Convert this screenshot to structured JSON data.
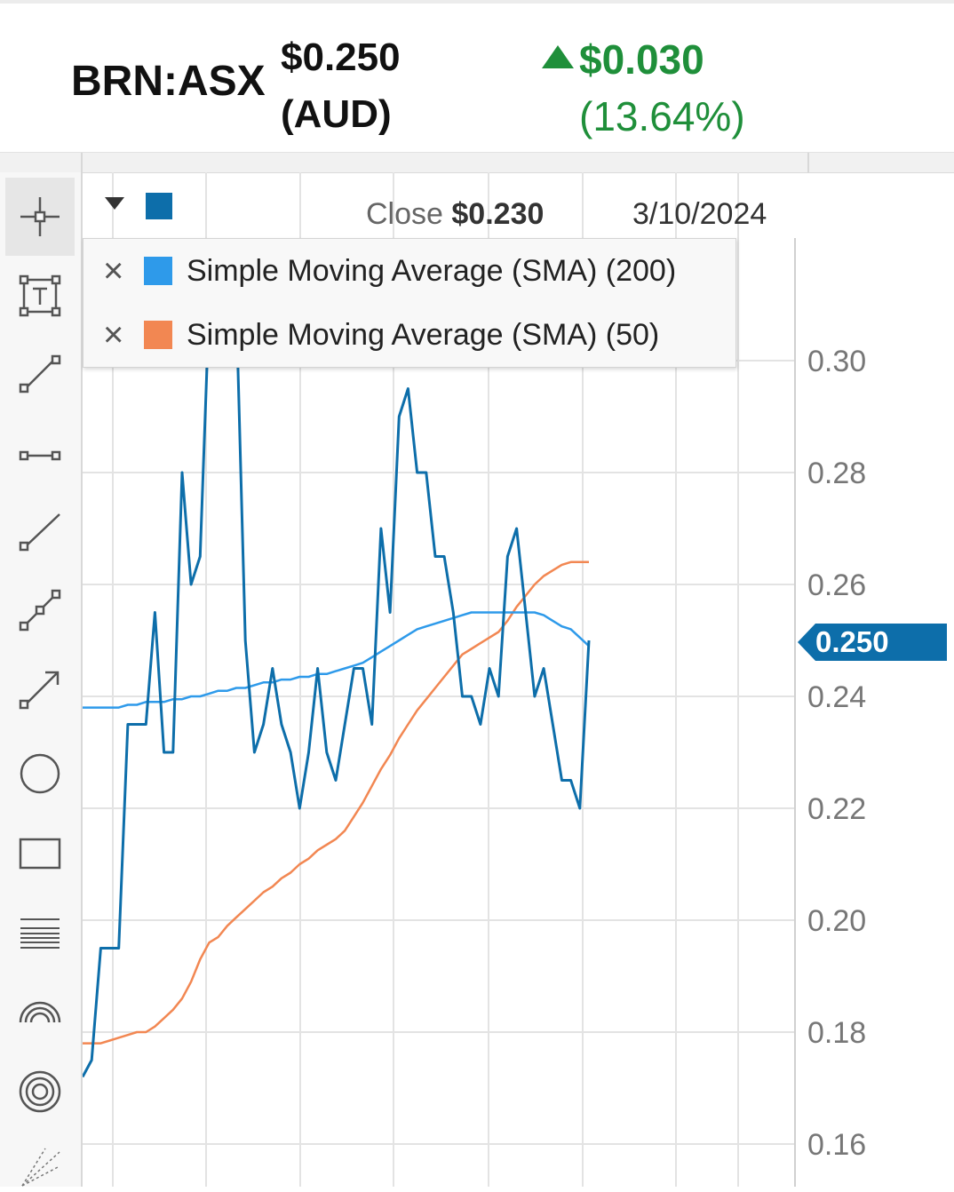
{
  "header": {
    "ticker": "BRN:ASX",
    "price": "$0.250",
    "currency": "(AUD)",
    "change": "$0.030",
    "change_pct": "(13.64%)",
    "change_color": "#1f8f3a"
  },
  "info": {
    "close_label": "Close",
    "close_value": "$0.230",
    "date": "3/10/2024"
  },
  "legend": [
    {
      "label": "Simple Moving Average (SMA) (200)",
      "color": "#2e9aea"
    },
    {
      "label": "Simple Moving Average (SMA) (50)",
      "color": "#f28752"
    }
  ],
  "toolbar": [
    "crosshair-icon",
    "text-annotation-icon",
    "line-segment-icon",
    "horizontal-segment-icon",
    "ray-icon",
    "polyline-icon",
    "arrow-icon",
    "circle-icon",
    "rectangle-icon",
    "horizontal-lines-icon",
    "arc-icon",
    "concentric-circles-icon",
    "fan-icon"
  ],
  "chart_data": {
    "type": "line",
    "ylim": [
      0.16,
      0.305
    ],
    "y_ticks": [
      "0.30",
      "0.28",
      "0.26",
      "0.24",
      "0.22",
      "0.20",
      "0.18",
      "0.16"
    ],
    "last_price_label": "0.250",
    "last_price_color": "#0d6eaa",
    "series": [
      {
        "color": "#0d6eaa",
        "values": [
          0.172,
          0.175,
          0.195,
          0.195,
          0.195,
          0.235,
          0.235,
          0.235,
          0.255,
          0.23,
          0.23,
          0.28,
          0.26,
          0.265,
          0.31,
          0.31,
          0.31,
          0.31,
          0.25,
          0.23,
          0.235,
          0.245,
          0.235,
          0.23,
          0.22,
          0.23,
          0.245,
          0.23,
          0.225,
          0.235,
          0.245,
          0.245,
          0.235,
          0.27,
          0.255,
          0.29,
          0.295,
          0.28,
          0.28,
          0.265,
          0.265,
          0.255,
          0.24,
          0.24,
          0.235,
          0.245,
          0.24,
          0.265,
          0.27,
          0.255,
          0.24,
          0.245,
          0.235,
          0.225,
          0.225,
          0.22,
          0.25
        ]
      },
      {
        "name": "Simple Moving Average (SMA) (200)",
        "color": "#2e9aea",
        "values": [
          0.238,
          0.238,
          0.238,
          0.238,
          0.238,
          0.2385,
          0.2385,
          0.239,
          0.239,
          0.239,
          0.2395,
          0.2395,
          0.24,
          0.24,
          0.2405,
          0.241,
          0.241,
          0.2415,
          0.2415,
          0.242,
          0.2425,
          0.2425,
          0.243,
          0.243,
          0.2435,
          0.2435,
          0.244,
          0.244,
          0.2445,
          0.245,
          0.2455,
          0.246,
          0.247,
          0.248,
          0.249,
          0.25,
          0.251,
          0.252,
          0.2525,
          0.253,
          0.2535,
          0.254,
          0.2545,
          0.255,
          0.255,
          0.255,
          0.255,
          0.255,
          0.255,
          0.255,
          0.255,
          0.2545,
          0.2535,
          0.2525,
          0.252,
          0.2505,
          0.249
        ]
      },
      {
        "name": "Simple Moving Average (SMA) (50)",
        "color": "#f28752",
        "values": [
          0.178,
          0.178,
          0.178,
          0.1785,
          0.179,
          0.1795,
          0.18,
          0.18,
          0.181,
          0.1825,
          0.184,
          0.186,
          0.189,
          0.193,
          0.196,
          0.197,
          0.199,
          0.2005,
          0.202,
          0.2035,
          0.205,
          0.206,
          0.2075,
          0.2085,
          0.21,
          0.211,
          0.2125,
          0.2135,
          0.2145,
          0.216,
          0.2185,
          0.221,
          0.224,
          0.227,
          0.2295,
          0.2325,
          0.235,
          0.2375,
          0.2395,
          0.2415,
          0.2435,
          0.2455,
          0.2475,
          0.2485,
          0.2495,
          0.2505,
          0.2515,
          0.2535,
          0.256,
          0.258,
          0.26,
          0.2615,
          0.2625,
          0.2635,
          0.264,
          0.264,
          0.264
        ]
      }
    ]
  }
}
